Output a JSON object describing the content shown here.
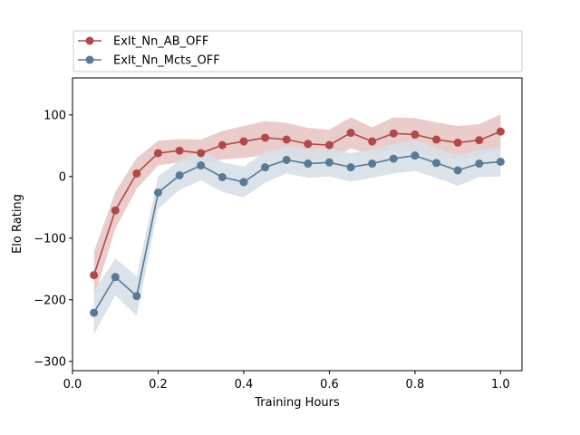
{
  "chart_data": {
    "type": "line",
    "xlabel": "Training Hours",
    "ylabel": "Elo Rating",
    "xlim": [
      0.0,
      1.05
    ],
    "ylim": [
      -315,
      160
    ],
    "xticks": [
      0.0,
      0.2,
      0.4,
      0.6,
      0.8,
      1.0
    ],
    "xtick_labels": [
      "0.0",
      "0.2",
      "0.4",
      "0.6",
      "0.8",
      "1.0"
    ],
    "yticks": [
      -300,
      -200,
      -100,
      0,
      100
    ],
    "ytick_labels": [
      "−300",
      "−200",
      "−100",
      "0",
      "100"
    ],
    "grid": false,
    "legend_position": "top, above plot",
    "x": [
      0.05,
      0.1,
      0.15,
      0.2,
      0.25,
      0.3,
      0.35,
      0.4,
      0.45,
      0.5,
      0.55,
      0.6,
      0.65,
      0.7,
      0.75,
      0.8,
      0.85,
      0.9,
      0.95,
      1.0
    ],
    "series": [
      {
        "name": "ExIt_Nn_AB_OFF",
        "color": "#b04a48",
        "band_color": "#e8c6c5",
        "values": [
          -160,
          -55,
          5,
          38,
          42,
          38,
          51,
          57,
          63,
          60,
          53,
          51,
          71,
          57,
          70,
          68,
          60,
          55,
          59,
          73
        ],
        "lower": [
          -198,
          -85,
          -20,
          18,
          23,
          18,
          28,
          30,
          35,
          33,
          27,
          27,
          46,
          35,
          44,
          40,
          33,
          28,
          33,
          45
        ],
        "upper": [
          -122,
          -25,
          30,
          58,
          61,
          60,
          74,
          82,
          90,
          87,
          79,
          76,
          96,
          80,
          96,
          95,
          88,
          82,
          85,
          101
        ]
      },
      {
        "name": "ExIt_Nn_Mcts_OFF",
        "color": "#587a98",
        "band_color": "#d7dfe7",
        "values": [
          -221,
          -163,
          -194,
          -26,
          2,
          18,
          -1,
          -9,
          15,
          27,
          21,
          23,
          15,
          21,
          29,
          34,
          22,
          10,
          21,
          24
        ],
        "lower": [
          -256,
          -193,
          -226,
          -52,
          -22,
          -6,
          -25,
          -34,
          -10,
          5,
          -2,
          0,
          -8,
          -2,
          5,
          9,
          -2,
          -15,
          -1,
          0
        ],
        "upper": [
          -186,
          -133,
          -162,
          0,
          26,
          42,
          23,
          16,
          40,
          49,
          44,
          46,
          38,
          44,
          53,
          59,
          46,
          35,
          43,
          48
        ]
      }
    ]
  }
}
